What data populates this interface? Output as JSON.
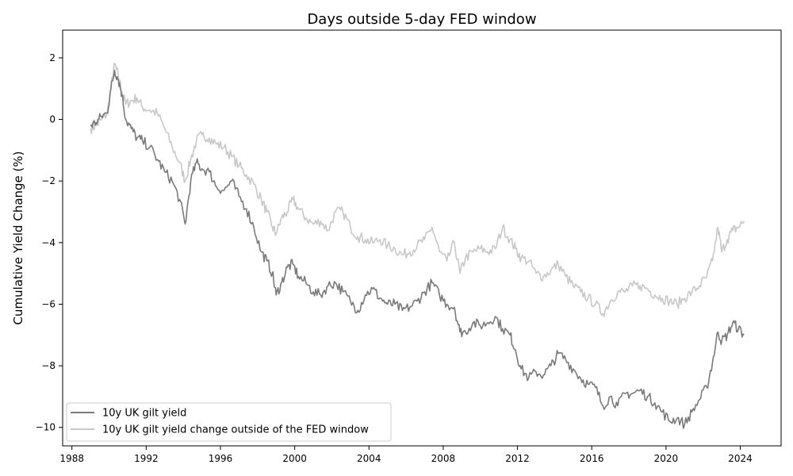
{
  "chart_data": {
    "type": "line",
    "title": "Days outside 5-day FED window",
    "xlabel": "",
    "ylabel": "Cumulative Yield Change (%)",
    "xlim": [
      1987.5,
      2026.2
    ],
    "ylim": [
      -10.6,
      2.9
    ],
    "x_ticks": [
      1988,
      1992,
      1996,
      2000,
      2004,
      2008,
      2012,
      2016,
      2020,
      2024
    ],
    "y_ticks": [
      2,
      0,
      -2,
      -4,
      -6,
      -8,
      -10
    ],
    "y_tick_labels": [
      "2",
      "0",
      "−2",
      "−4",
      "−6",
      "−8",
      "−10"
    ],
    "grid": false,
    "legend_position": "lower-left",
    "series": [
      {
        "name": "10y UK gilt yield",
        "color": "#7a7a7a",
        "x": [
          1989.0,
          1989.3,
          1989.6,
          1989.9,
          1990.1,
          1990.3,
          1990.5,
          1990.7,
          1990.9,
          1991.2,
          1991.5,
          1991.8,
          1992.2,
          1992.6,
          1993.0,
          1993.4,
          1993.8,
          1994.1,
          1994.4,
          1994.7,
          1995.0,
          1995.4,
          1995.8,
          1996.2,
          1996.6,
          1997.0,
          1997.4,
          1997.8,
          1998.2,
          1998.5,
          1998.8,
          1999.0,
          1999.3,
          1999.6,
          1999.9,
          2000.2,
          2000.6,
          2001.0,
          2001.4,
          2001.8,
          2002.2,
          2002.6,
          2003.0,
          2003.4,
          2003.8,
          2004.2,
          2004.6,
          2005.0,
          2005.4,
          2005.8,
          2006.2,
          2006.6,
          2007.0,
          2007.4,
          2007.8,
          2008.2,
          2008.6,
          2008.9,
          2009.2,
          2009.6,
          2010.0,
          2010.4,
          2010.8,
          2011.2,
          2011.6,
          2011.9,
          2012.2,
          2012.6,
          2013.0,
          2013.4,
          2013.8,
          2014.2,
          2014.6,
          2015.0,
          2015.4,
          2015.8,
          2016.2,
          2016.6,
          2017.0,
          2017.4,
          2017.8,
          2018.2,
          2018.6,
          2019.0,
          2019.4,
          2019.8,
          2020.2,
          2020.6,
          2021.0,
          2021.4,
          2021.8,
          2022.2,
          2022.5,
          2022.8,
          2023.0,
          2023.3,
          2023.6,
          2023.9,
          2024.2
        ],
        "y": [
          -0.2,
          -0.1,
          0.1,
          0.2,
          1.0,
          1.6,
          1.3,
          0.8,
          0.0,
          -0.3,
          -0.6,
          -0.7,
          -0.9,
          -1.3,
          -1.7,
          -2.0,
          -2.6,
          -3.4,
          -2.0,
          -1.4,
          -1.6,
          -1.7,
          -2.2,
          -2.3,
          -2.0,
          -2.5,
          -2.9,
          -3.5,
          -4.3,
          -4.6,
          -5.0,
          -5.7,
          -5.3,
          -4.8,
          -4.7,
          -5.1,
          -5.3,
          -5.6,
          -5.7,
          -5.4,
          -5.3,
          -5.6,
          -5.9,
          -6.2,
          -5.7,
          -5.5,
          -5.8,
          -6.0,
          -6.0,
          -6.2,
          -6.1,
          -5.9,
          -5.6,
          -5.3,
          -5.7,
          -6.0,
          -6.1,
          -6.9,
          -6.9,
          -6.6,
          -6.7,
          -6.6,
          -6.4,
          -6.8,
          -7.0,
          -7.5,
          -8.1,
          -8.4,
          -8.2,
          -8.3,
          -8.0,
          -7.6,
          -7.8,
          -8.1,
          -8.4,
          -8.6,
          -8.7,
          -9.3,
          -9.0,
          -9.3,
          -8.9,
          -8.9,
          -8.8,
          -9.0,
          -9.2,
          -9.5,
          -9.8,
          -9.7,
          -9.9,
          -9.5,
          -9.1,
          -8.7,
          -7.9,
          -6.9,
          -7.2,
          -7.0,
          -6.6,
          -6.8,
          -7.0
        ]
      },
      {
        "name": "10y UK gilt yield change outside of the FED window",
        "color": "#c8c8c8",
        "x": [
          1989.0,
          1989.3,
          1989.6,
          1989.9,
          1990.1,
          1990.3,
          1990.5,
          1990.7,
          1990.9,
          1991.2,
          1991.5,
          1991.8,
          1992.2,
          1992.6,
          1993.0,
          1993.4,
          1993.8,
          1994.1,
          1994.4,
          1994.7,
          1995.0,
          1995.4,
          1995.8,
          1996.2,
          1996.6,
          1997.0,
          1997.4,
          1997.8,
          1998.2,
          1998.5,
          1998.8,
          1999.0,
          1999.3,
          1999.6,
          1999.9,
          2000.2,
          2000.6,
          2001.0,
          2001.4,
          2001.8,
          2002.2,
          2002.6,
          2003.0,
          2003.4,
          2003.8,
          2004.2,
          2004.6,
          2005.0,
          2005.4,
          2005.8,
          2006.2,
          2006.6,
          2007.0,
          2007.4,
          2007.8,
          2008.2,
          2008.6,
          2008.9,
          2009.2,
          2009.6,
          2010.0,
          2010.4,
          2010.8,
          2011.2,
          2011.6,
          2011.9,
          2012.2,
          2012.6,
          2013.0,
          2013.4,
          2013.8,
          2014.2,
          2014.6,
          2015.0,
          2015.4,
          2015.8,
          2016.2,
          2016.6,
          2017.0,
          2017.4,
          2017.8,
          2018.2,
          2018.6,
          2019.0,
          2019.4,
          2019.8,
          2020.2,
          2020.6,
          2021.0,
          2021.4,
          2021.8,
          2022.2,
          2022.5,
          2022.8,
          2023.0,
          2023.3,
          2023.6,
          2023.9,
          2024.2
        ],
        "y": [
          -0.3,
          -0.2,
          0.0,
          0.2,
          1.0,
          1.8,
          1.4,
          0.9,
          0.5,
          0.6,
          0.7,
          0.4,
          0.3,
          0.2,
          -0.3,
          -0.9,
          -1.4,
          -2.0,
          -1.3,
          -0.7,
          -0.5,
          -0.6,
          -0.8,
          -0.9,
          -1.2,
          -1.5,
          -1.8,
          -2.1,
          -2.6,
          -3.0,
          -3.5,
          -3.7,
          -3.2,
          -3.0,
          -2.6,
          -2.9,
          -3.2,
          -3.4,
          -3.3,
          -3.6,
          -3.0,
          -3.0,
          -3.5,
          -3.8,
          -3.9,
          -4.0,
          -3.9,
          -4.1,
          -4.2,
          -4.4,
          -4.3,
          -4.1,
          -3.9,
          -3.5,
          -4.3,
          -4.6,
          -4.0,
          -5.0,
          -4.5,
          -4.3,
          -4.2,
          -4.3,
          -4.2,
          -3.5,
          -3.9,
          -4.2,
          -4.5,
          -4.6,
          -5.0,
          -5.1,
          -4.9,
          -4.7,
          -5.1,
          -5.4,
          -5.6,
          -5.8,
          -6.0,
          -6.3,
          -5.9,
          -5.6,
          -5.6,
          -5.4,
          -5.4,
          -5.5,
          -5.7,
          -5.8,
          -5.9,
          -6.0,
          -5.8,
          -5.6,
          -5.4,
          -5.1,
          -4.6,
          -3.5,
          -4.3,
          -3.9,
          -3.6,
          -3.5,
          -3.3
        ]
      }
    ]
  }
}
